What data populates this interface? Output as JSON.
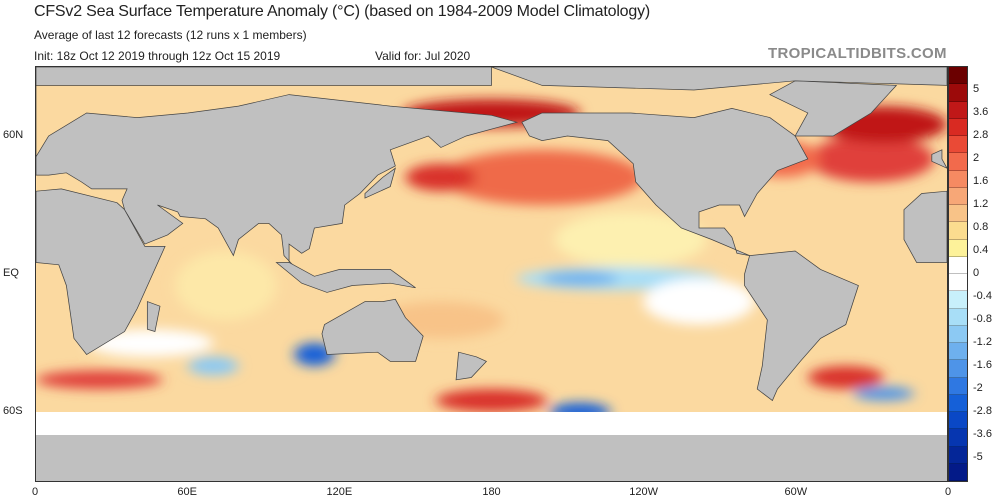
{
  "header": {
    "title": "CFSv2 Sea Surface Temperature Anomaly (°C) (based on 1984-2009 Model Climatology)",
    "subtitle": "Average of last 12 forecasts (12 runs x 1 members)",
    "init": "Init: 18z Oct 12 2019 through 12z Oct 15 2019",
    "valid": "Valid for: Jul 2020",
    "brand": "TROPICALTIDBITS.COM"
  },
  "axes": {
    "x_ticks": [
      "0",
      "60E",
      "120E",
      "180",
      "120W",
      "60W",
      "0"
    ],
    "y_ticks": [
      "60N",
      "EQ",
      "60S"
    ]
  },
  "colorbar": {
    "labels": [
      "5",
      "3.6",
      "2.8",
      "2",
      "1.6",
      "1.2",
      "0.8",
      "0.4",
      "0",
      "-0.4",
      "-0.8",
      "-1.2",
      "-1.6",
      "-2",
      "-2.8",
      "-3.6",
      "-5"
    ],
    "warm_colors": [
      "#6b0000",
      "#9c0a0a",
      "#c01818",
      "#d92a22",
      "#ea4a36",
      "#f26a4c",
      "#f68a62",
      "#f7a777",
      "#f8c388",
      "#fbdc8f",
      "#fdf29a"
    ],
    "cool_colors": [
      "#c8f0fb",
      "#a8def7",
      "#8cc9f3",
      "#6eb0ee",
      "#4e94e8",
      "#2f78e2",
      "#1560d8",
      "#0a48c6",
      "#0636b0",
      "#042698",
      "#031a88"
    ]
  }
}
